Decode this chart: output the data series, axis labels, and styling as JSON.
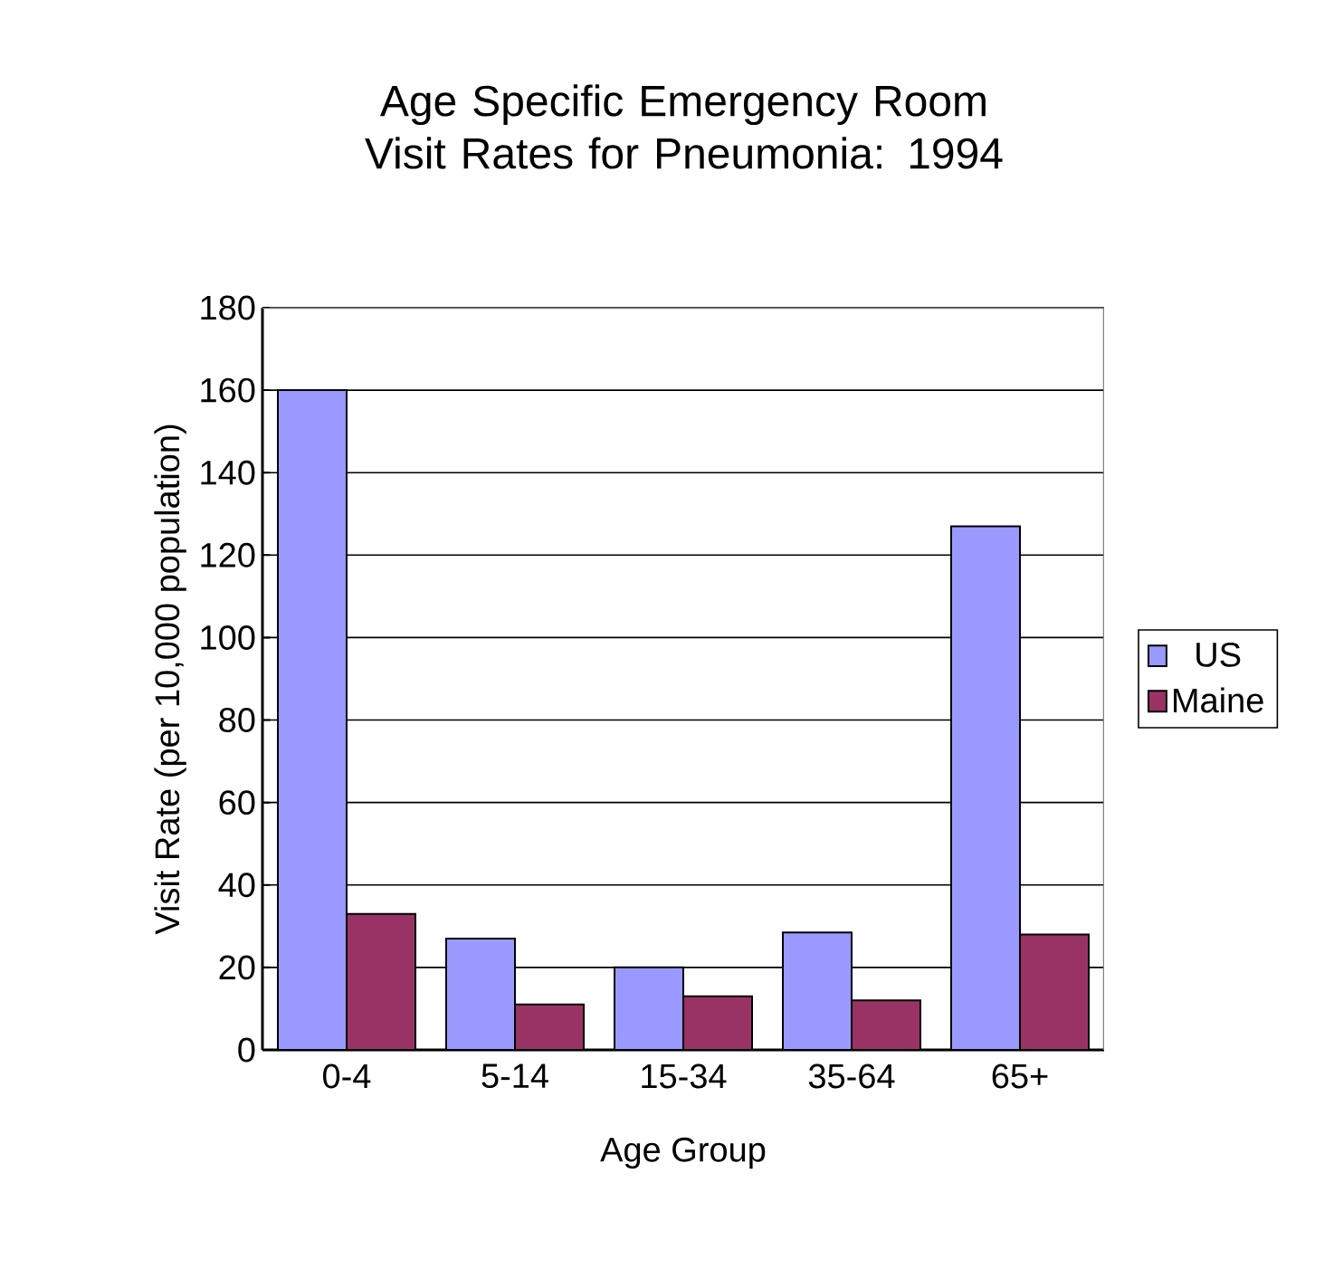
{
  "chart_data": {
    "type": "bar",
    "title": "Age Specific Emergency Room Visit Rates for Pneumonia: 1994",
    "xlabel": "Age Group",
    "ylabel": "Visit Rate (per 10,000 population)",
    "categories": [
      "0-4",
      "5-14",
      "15-34",
      "35-64",
      "65+"
    ],
    "series": [
      {
        "name": "US",
        "color": "#9999ff",
        "values": [
          160,
          27,
          20,
          28.5,
          127
        ]
      },
      {
        "name": "Maine",
        "color": "#993366",
        "values": [
          33,
          11,
          13,
          12,
          28
        ]
      }
    ],
    "ylim": [
      0,
      180
    ],
    "yticks": [
      0,
      20,
      40,
      60,
      80,
      100,
      120,
      140,
      160,
      180
    ],
    "grid": "y",
    "legend": "right"
  }
}
